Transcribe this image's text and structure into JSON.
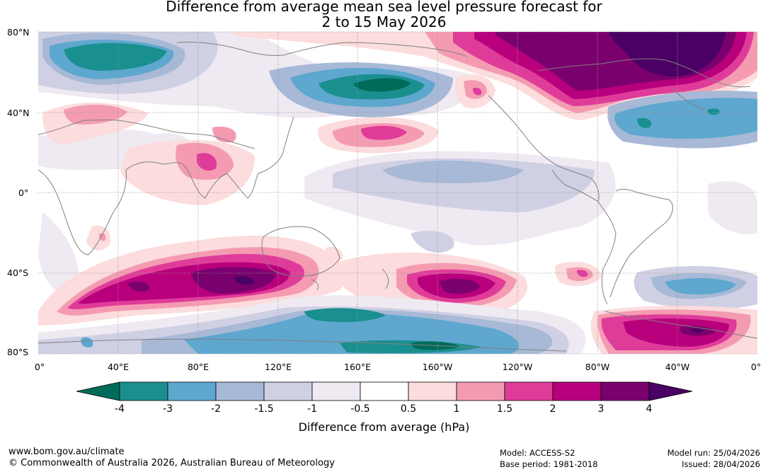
{
  "title": {
    "line1": "Difference from average mean sea level pressure forecast for",
    "line2": "2 to 15 May 2026"
  },
  "map": {
    "lat_labels": [
      "80°N",
      "40°N",
      "0°",
      "40°S",
      "80°S"
    ],
    "lon_labels": [
      "0°",
      "40°E",
      "80°E",
      "120°E",
      "160°E",
      "160°W",
      "120°W",
      "80°W",
      "40°W",
      "0°"
    ],
    "colors": {
      "n4": "#006b5a",
      "n3": "#1a8f8f",
      "n2": "#5ea7cf",
      "n15": "#a7b9d6",
      "n1": "#d0d0e4",
      "n05": "#efe9f2",
      "zero": "#ffffff",
      "p05": "#fcdcdc",
      "p1": "#f49bb2",
      "p15": "#df3c9a",
      "p2": "#b8007c",
      "p3": "#7a006e",
      "p4": "#4a0064",
      "coast": "#808080"
    }
  },
  "colorbar": {
    "ticks": [
      "-4",
      "-3",
      "-2",
      "-1.5",
      "-1",
      "-0.5",
      "0.5",
      "1",
      "1.5",
      "2",
      "3",
      "4"
    ],
    "title": "Difference from average (hPa)"
  },
  "footer": {
    "url": "www.bom.gov.au/climate",
    "copyright": "© Commonwealth of Australia 2026, Australian Bureau of Meteorology",
    "model": "Model: ACCESS-S2",
    "base_period": "Base period: 1981-2018",
    "model_run": "Model run: 25/04/2026",
    "issued": "Issued: 28/04/2026"
  }
}
